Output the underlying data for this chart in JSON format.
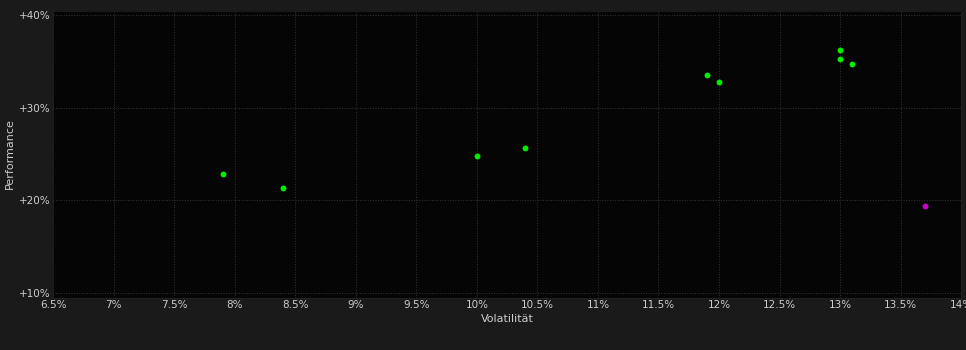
{
  "background_color": "#1a1a1a",
  "plot_bg_color": "#050505",
  "grid_color": "#333333",
  "grid_style": ":",
  "xlabel": "Volatilität",
  "ylabel": "Performance",
  "xlim": [
    0.065,
    0.14
  ],
  "ylim": [
    0.095,
    0.405
  ],
  "xticks": [
    0.065,
    0.07,
    0.075,
    0.08,
    0.085,
    0.09,
    0.095,
    0.1,
    0.105,
    0.11,
    0.115,
    0.12,
    0.125,
    0.13,
    0.135,
    0.14
  ],
  "yticks": [
    0.1,
    0.2,
    0.3,
    0.4
  ],
  "ytick_labels": [
    "+10%",
    "+20%",
    "+30%",
    "+40%"
  ],
  "xtick_labels": [
    "6.5%",
    "7%",
    "7.5%",
    "8%",
    "8.5%",
    "9%",
    "9.5%",
    "10%",
    "10.5%",
    "11%",
    "11.5%",
    "12%",
    "12.5%",
    "13%",
    "13.5%",
    "14%"
  ],
  "green_points": [
    [
      0.079,
      0.228
    ],
    [
      0.084,
      0.213
    ],
    [
      0.1,
      0.248
    ],
    [
      0.104,
      0.256
    ],
    [
      0.119,
      0.335
    ],
    [
      0.12,
      0.328
    ],
    [
      0.13,
      0.362
    ],
    [
      0.13,
      0.353
    ],
    [
      0.131,
      0.347
    ]
  ],
  "magenta_points": [
    [
      0.137,
      0.194
    ]
  ],
  "green_color": "#00ee00",
  "magenta_color": "#cc00cc",
  "marker_size": 18,
  "tick_color": "#cccccc",
  "label_color": "#cccccc",
  "label_fontsize": 8,
  "tick_fontsize": 7.5
}
